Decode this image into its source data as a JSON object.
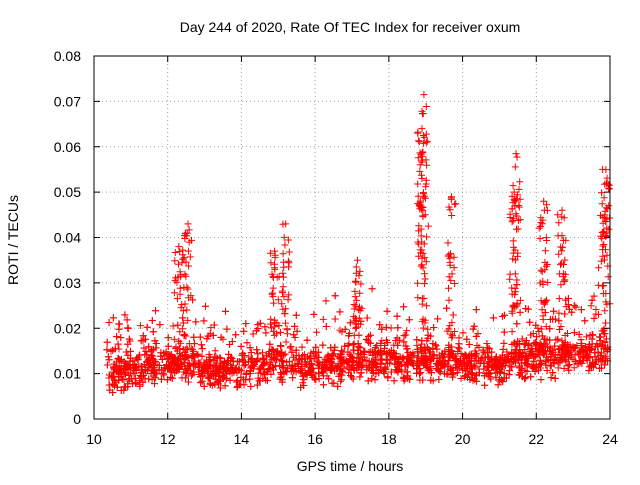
{
  "chart_data": {
    "type": "scatter",
    "title": "Day 244 of 2020, Rate Of TEC Index for receiver oxum",
    "xlabel": "GPS time / hours",
    "ylabel": "ROTI / TECUs",
    "xlim": [
      10,
      24
    ],
    "ylim": [
      0,
      0.08
    ],
    "xticks": [
      10,
      12,
      14,
      16,
      18,
      20,
      22,
      24
    ],
    "xtick_labels": [
      "10",
      "12",
      "14",
      "16",
      "18",
      "20",
      "22",
      "24"
    ],
    "yticks": [
      0,
      0.01,
      0.02,
      0.03,
      0.04,
      0.05,
      0.06,
      0.07,
      0.08
    ],
    "ytick_labels": [
      "0",
      "0.01",
      "0.02",
      "0.03",
      "0.04",
      "0.05",
      "0.06",
      "0.07",
      "0.08"
    ],
    "grid": true,
    "marker": "+",
    "marker_color": "#ff0000",
    "x_start": 10.35,
    "x_end": 23.95,
    "baseline_profile": [
      [
        10.4,
        0.01
      ],
      [
        11.0,
        0.011
      ],
      [
        12.0,
        0.012
      ],
      [
        12.5,
        0.013
      ],
      [
        13.0,
        0.011
      ],
      [
        14.0,
        0.011
      ],
      [
        15.0,
        0.012
      ],
      [
        16.0,
        0.012
      ],
      [
        17.0,
        0.013
      ],
      [
        18.0,
        0.013
      ],
      [
        19.0,
        0.013
      ],
      [
        20.0,
        0.012
      ],
      [
        21.0,
        0.012
      ],
      [
        22.0,
        0.014
      ],
      [
        23.0,
        0.014
      ],
      [
        24.0,
        0.015
      ]
    ],
    "spikes": [
      {
        "x": 12.55,
        "y": 0.043
      },
      {
        "x": 12.3,
        "y": 0.038
      },
      {
        "x": 14.9,
        "y": 0.037
      },
      {
        "x": 15.2,
        "y": 0.043
      },
      {
        "x": 17.15,
        "y": 0.035
      },
      {
        "x": 18.9,
        "y": 0.053
      },
      {
        "x": 18.95,
        "y": 0.0715
      },
      {
        "x": 18.9,
        "y": 0.064
      },
      {
        "x": 19.7,
        "y": 0.049
      },
      {
        "x": 21.45,
        "y": 0.0585
      },
      {
        "x": 21.4,
        "y": 0.05
      },
      {
        "x": 22.2,
        "y": 0.048
      },
      {
        "x": 22.7,
        "y": 0.046
      },
      {
        "x": 23.8,
        "y": 0.055
      },
      {
        "x": 23.9,
        "y": 0.052
      }
    ]
  }
}
